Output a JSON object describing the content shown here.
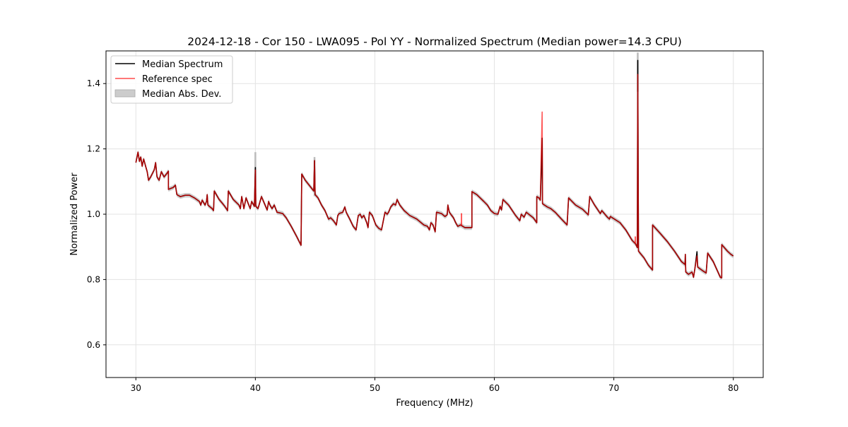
{
  "chart_data": {
    "type": "line",
    "title": "2024-12-18 - Cor 150 - LWA095 - Pol YY - Normalized Spectrum (Median power=14.3 CPU)",
    "xlabel": "Frequency (MHz)",
    "ylabel": "Normalized Power",
    "xlim": [
      27.5,
      82.5
    ],
    "ylim": [
      0.5,
      1.5
    ],
    "xticks": [
      30,
      40,
      50,
      60,
      70,
      80
    ],
    "xtick_labels": [
      "30",
      "40",
      "50",
      "60",
      "70",
      "80"
    ],
    "yticks": [
      0.6,
      0.8,
      1.0,
      1.2,
      1.4
    ],
    "ytick_labels": [
      "0.6",
      "0.8",
      "1.0",
      "1.2",
      "1.4"
    ],
    "grid": true,
    "legend_position": "top-left",
    "legend": [
      {
        "label": "Median Spectrum",
        "color": "#000000",
        "kind": "line"
      },
      {
        "label": "Reference spec",
        "color": "#ff0000",
        "kind": "line"
      },
      {
        "label": "Median Abs. Dev.",
        "color": "#bfbfbf",
        "kind": "patch"
      }
    ],
    "median": {
      "x": [
        30.0,
        30.18,
        30.3,
        30.41,
        30.53,
        30.65,
        30.83,
        30.95,
        31.06,
        31.24,
        31.54,
        31.65,
        31.77,
        31.95,
        32.13,
        32.36,
        32.6,
        32.72,
        32.72,
        33.13,
        33.31,
        33.43,
        33.72,
        34.13,
        34.49,
        34.9,
        35.32,
        35.43,
        35.55,
        35.79,
        35.91,
        35.97,
        36.03,
        36.38,
        36.5,
        36.56,
        36.97,
        37.27,
        37.44,
        37.68,
        37.74,
        38.15,
        38.63,
        38.74,
        38.86,
        39.04,
        39.22,
        39.45,
        39.57,
        39.69,
        39.92,
        40.0,
        40.04,
        40.22,
        40.51,
        40.81,
        40.99,
        41.11,
        41.22,
        41.4,
        41.58,
        41.81,
        42.29,
        42.58,
        43.0,
        43.47,
        43.82,
        43.88,
        44.18,
        44.65,
        44.89,
        44.95,
        45.0,
        45.24,
        45.54,
        45.83,
        46.13,
        46.3,
        46.54,
        46.78,
        46.9,
        47.01,
        47.31,
        47.49,
        47.6,
        47.9,
        48.19,
        48.43,
        48.61,
        48.78,
        48.9,
        49.08,
        49.32,
        49.43,
        49.55,
        49.79,
        50.08,
        50.32,
        50.56,
        50.85,
        51.03,
        51.15,
        51.33,
        51.56,
        51.74,
        51.86,
        52.09,
        52.45,
        52.92,
        53.51,
        54.1,
        54.4,
        54.57,
        54.69,
        54.87,
        55.05,
        55.16,
        55.58,
        55.87,
        56.05,
        56.11,
        56.23,
        56.58,
        56.76,
        56.94,
        57.17,
        57.53,
        58.12,
        58.12,
        58.53,
        59.12,
        59.42,
        59.71,
        60.01,
        60.3,
        60.48,
        60.6,
        60.72,
        61.19,
        61.78,
        62.13,
        62.25,
        62.49,
        62.67,
        63.26,
        63.55,
        63.55,
        63.73,
        63.85,
        64.0,
        64.03,
        64.44,
        64.73,
        65.09,
        65.62,
        66.09,
        66.21,
        66.8,
        67.39,
        67.86,
        67.98,
        68.39,
        68.87,
        68.99,
        69.46,
        69.64,
        69.7,
        70.05,
        70.52,
        71.0,
        71.53,
        71.82,
        71.97,
        72.0,
        72.06,
        72.53,
        72.89,
        73.24,
        73.24,
        73.89,
        74.48,
        75.07,
        75.66,
        75.96,
        75.98,
        76.02,
        76.25,
        76.55,
        76.67,
        76.78,
        76.96,
        77.02,
        77.43,
        77.73,
        77.85,
        78.32,
        78.91,
        79.03,
        79.03,
        79.5,
        79.8,
        80.0
      ],
      "y": [
        1.158,
        1.19,
        1.162,
        1.175,
        1.147,
        1.169,
        1.145,
        1.13,
        1.104,
        1.114,
        1.136,
        1.158,
        1.114,
        1.104,
        1.13,
        1.114,
        1.125,
        1.132,
        1.076,
        1.082,
        1.089,
        1.06,
        1.054,
        1.058,
        1.058,
        1.05,
        1.039,
        1.028,
        1.043,
        1.028,
        1.039,
        1.06,
        1.028,
        1.017,
        1.011,
        1.071,
        1.045,
        1.032,
        1.024,
        1.011,
        1.071,
        1.045,
        1.028,
        1.017,
        1.054,
        1.017,
        1.05,
        1.028,
        1.017,
        1.039,
        1.024,
        1.143,
        1.024,
        1.017,
        1.054,
        1.028,
        1.013,
        1.039,
        1.028,
        1.017,
        1.028,
        1.006,
        1.002,
        0.989,
        0.963,
        0.931,
        0.905,
        1.123,
        1.104,
        1.082,
        1.071,
        1.164,
        1.06,
        1.05,
        1.028,
        1.011,
        0.985,
        0.989,
        0.98,
        0.967,
        0.996,
        1.002,
        1.006,
        1.022,
        1.006,
        0.985,
        0.963,
        0.952,
        0.996,
        1.0,
        0.989,
        0.996,
        0.974,
        0.959,
        1.006,
        0.996,
        0.967,
        0.957,
        0.952,
        1.006,
        1.0,
        1.006,
        1.022,
        1.032,
        1.028,
        1.045,
        1.028,
        1.011,
        0.996,
        0.985,
        0.967,
        0.963,
        0.952,
        0.974,
        0.967,
        0.946,
        1.006,
        1.002,
        0.993,
        0.998,
        1.028,
        1.006,
        0.989,
        0.974,
        0.963,
        0.967,
        0.959,
        0.959,
        1.069,
        1.06,
        1.039,
        1.028,
        1.011,
        1.002,
        1.0,
        1.024,
        1.013,
        1.045,
        1.028,
        0.996,
        0.98,
        1.0,
        0.991,
        1.006,
        0.989,
        0.974,
        1.054,
        1.05,
        1.043,
        1.233,
        1.032,
        1.022,
        1.017,
        1.006,
        0.985,
        0.967,
        1.05,
        1.028,
        1.015,
        0.998,
        1.054,
        1.028,
        1.002,
        1.011,
        0.991,
        0.985,
        0.993,
        0.985,
        0.974,
        0.952,
        0.92,
        0.909,
        0.898,
        1.471,
        0.887,
        0.866,
        0.844,
        0.829,
        0.967,
        0.941,
        0.916,
        0.887,
        0.855,
        0.846,
        0.877,
        0.823,
        0.816,
        0.823,
        0.807,
        0.833,
        0.885,
        0.838,
        0.827,
        0.82,
        0.881,
        0.855,
        0.807,
        0.805,
        0.907,
        0.887,
        0.877,
        0.872
      ]
    },
    "reference_overrides": [
      {
        "x": 40.0,
        "y": 1.135
      },
      {
        "x": 64.0,
        "y": 1.313
      },
      {
        "x": 72.0,
        "y": 1.428
      },
      {
        "x": 76.96,
        "y": 0.872
      }
    ],
    "reference_extra_spikes": [
      {
        "x": 57.25,
        "base": 0.965,
        "y": 1.003
      },
      {
        "x": 71.8,
        "base": 0.911,
        "y": 0.932
      }
    ],
    "mad": {
      "half_width": 0.007,
      "spike_tops": [
        {
          "x": 40.0,
          "y": 1.19
        },
        {
          "x": 44.95,
          "y": 1.175
        },
        {
          "x": 72.0,
          "y": 1.495
        }
      ]
    }
  }
}
